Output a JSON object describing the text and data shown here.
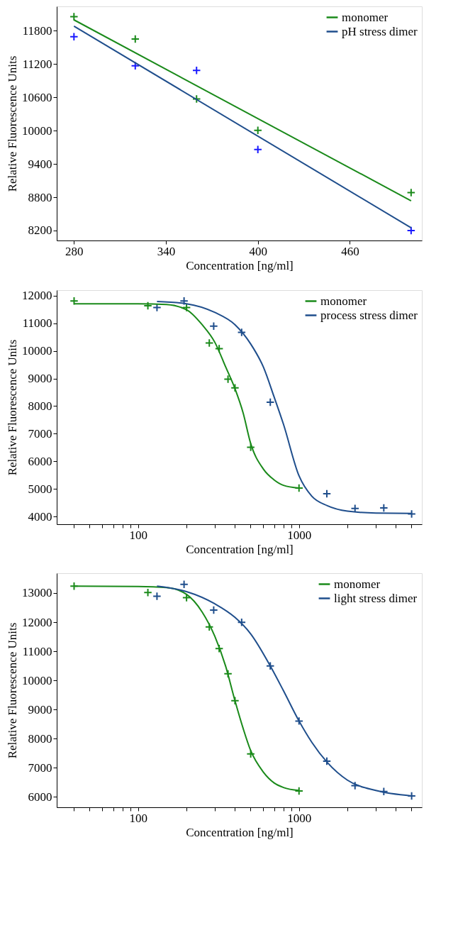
{
  "chart_data": [
    {
      "type": "line",
      "xlabel": "Concentration [ng/ml]",
      "ylabel": "Relative Fluorescence Units",
      "xlim": [
        268.75,
        507
      ],
      "ylim": [
        8020,
        12240
      ],
      "xticks": [
        280,
        340,
        400,
        460
      ],
      "yticks": [
        8200,
        8800,
        9400,
        10000,
        10600,
        11200,
        11800
      ],
      "grid": false,
      "legend": "top right",
      "series": [
        {
          "type": "scatter",
          "marker": "cross",
          "color": "#1a8a1a",
          "x": [
            280,
            320,
            360,
            400,
            500
          ],
          "values": [
            12056,
            11652,
            10571,
            10005,
            8884
          ]
        },
        {
          "type": "scatter",
          "marker": "cross",
          "color": "#1a1aff",
          "x": [
            280,
            320,
            360,
            400,
            500
          ],
          "values": [
            11692,
            11170,
            11087,
            9661,
            8200
          ]
        },
        {
          "name": "monomer",
          "color": "#1a8a1a",
          "x": [
            280,
            500
          ],
          "values": [
            11997,
            8736
          ]
        },
        {
          "name": "pH stress dimer",
          "color": "#1f4e8c",
          "x": [
            280,
            500
          ],
          "values": [
            11884,
            8249
          ]
        }
      ]
    },
    {
      "type": "line",
      "xlabel": "Concentration [ng/ml]",
      "ylabel": "Relative Fluorescence Units",
      "log": "x",
      "xlim": [
        31.2,
        5800
      ],
      "ylim": [
        3724,
        12197
      ],
      "xticks": [
        {
          "value": 40,
          "label": null
        },
        {
          "value": 50,
          "label": null
        },
        {
          "value": 60,
          "label": null
        },
        {
          "value": 70,
          "label": null
        },
        {
          "value": 80,
          "label": null
        },
        {
          "value": 90,
          "label": null
        },
        100,
        {
          "value": 200,
          "label": null
        },
        {
          "value": 300,
          "label": null
        },
        {
          "value": 400,
          "label": null
        },
        {
          "value": 500,
          "label": null
        },
        {
          "value": 600,
          "label": null
        },
        {
          "value": 700,
          "label": null
        },
        {
          "value": 800,
          "label": null
        },
        {
          "value": 900,
          "label": null
        },
        1000,
        {
          "value": 2000,
          "label": null
        },
        {
          "value": 3000,
          "label": null
        },
        {
          "value": 4000,
          "label": null
        },
        {
          "value": 5000,
          "label": null
        }
      ],
      "yticks": [
        4000,
        5000,
        6000,
        7000,
        8000,
        9000,
        10000,
        11000,
        12000
      ],
      "grid": false,
      "legend": "top right",
      "series": [
        {
          "type": "scatter",
          "marker": "cross",
          "color": "#1a8a1a",
          "x": [
            40,
            115,
            200,
            277,
            319,
            362,
            400,
            501,
            1000
          ],
          "values": [
            11803,
            11635,
            11567,
            10286,
            10079,
            8975,
            8660,
            6512,
            5034
          ]
        },
        {
          "type": "scatter",
          "marker": "cross",
          "color": "#1f4e8c",
          "x": [
            131,
            193,
            295,
            440,
            663,
            1489,
            2229,
            3365,
            5012
          ],
          "values": [
            11567,
            11803,
            10897,
            10670,
            8138,
            4827,
            4296,
            4315,
            4099
          ]
        },
        {
          "name": "monomer",
          "color": "#1a8a1a",
          "x": [
            40,
            100,
            150,
            200,
            250,
            300,
            350,
            400,
            450,
            500,
            600,
            700,
            800,
            1000
          ],
          "values": [
            11705,
            11705,
            11675,
            11488,
            10946,
            10306,
            9419,
            8630,
            7743,
            6660,
            5724,
            5330,
            5133,
            5034
          ]
        },
        {
          "name": "process stress dimer",
          "color": "#1f4e8c",
          "x": [
            131,
            200,
            300,
            400,
            500,
            600,
            700,
            800,
            1000,
            1200,
            1500,
            2000,
            3000,
            5012
          ],
          "values": [
            11783,
            11704,
            11389,
            10946,
            10256,
            9419,
            8335,
            7350,
            5478,
            4739,
            4394,
            4197,
            4128,
            4118
          ]
        }
      ]
    },
    {
      "type": "line",
      "xlabel": "Concentration [ng/ml]",
      "ylabel": "Relative Fluorescence Units",
      "log": "x",
      "xlim": [
        31.2,
        5800
      ],
      "ylim": [
        5646,
        13680
      ],
      "xticks": [
        {
          "value": 40,
          "label": null
        },
        {
          "value": 50,
          "label": null
        },
        {
          "value": 60,
          "label": null
        },
        {
          "value": 70,
          "label": null
        },
        {
          "value": 80,
          "label": null
        },
        {
          "value": 90,
          "label": null
        },
        100,
        {
          "value": 200,
          "label": null
        },
        {
          "value": 300,
          "label": null
        },
        {
          "value": 400,
          "label": null
        },
        {
          "value": 500,
          "label": null
        },
        {
          "value": 600,
          "label": null
        },
        {
          "value": 700,
          "label": null
        },
        {
          "value": 800,
          "label": null
        },
        {
          "value": 900,
          "label": null
        },
        1000,
        {
          "value": 2000,
          "label": null
        },
        {
          "value": 3000,
          "label": null
        },
        {
          "value": 4000,
          "label": null
        },
        {
          "value": 5000,
          "label": null
        }
      ],
      "yticks": [
        6000,
        7000,
        8000,
        9000,
        10000,
        11000,
        12000,
        13000
      ],
      "grid": false,
      "legend": "top right",
      "series": [
        {
          "type": "scatter",
          "marker": "cross",
          "color": "#1a8a1a",
          "x": [
            40,
            115,
            200,
            277,
            319,
            362,
            400,
            501,
            1000
          ],
          "values": [
            13233,
            13019,
            12842,
            11836,
            11091,
            10226,
            9304,
            7479,
            6205
          ]
        },
        {
          "type": "scatter",
          "marker": "cross",
          "color": "#1f4e8c",
          "x": [
            131,
            193,
            295,
            440,
            663,
            1000,
            1489,
            2229,
            3365,
            5012
          ],
          "values": [
            12888,
            13298,
            12414,
            11995,
            10497,
            8607,
            7229,
            6391,
            6186,
            6037
          ]
        },
        {
          "name": "monomer",
          "color": "#1a8a1a",
          "x": [
            40,
            100,
            150,
            200,
            250,
            300,
            350,
            400,
            450,
            500,
            600,
            700,
            800,
            1000
          ],
          "values": [
            13233,
            13223,
            13186,
            12953,
            12349,
            11510,
            10487,
            9304,
            8345,
            7600,
            6856,
            6484,
            6326,
            6223
          ]
        },
        {
          "name": "light stress dimer",
          "color": "#1f4e8c",
          "x": [
            131,
            200,
            300,
            400,
            500,
            663,
            800,
            1000,
            1200,
            1500,
            2000,
            3000,
            5012
          ],
          "values": [
            13233,
            13047,
            12628,
            12163,
            11604,
            10497,
            9650,
            8607,
            7880,
            7182,
            6577,
            6223,
            6037
          ]
        }
      ]
    }
  ]
}
